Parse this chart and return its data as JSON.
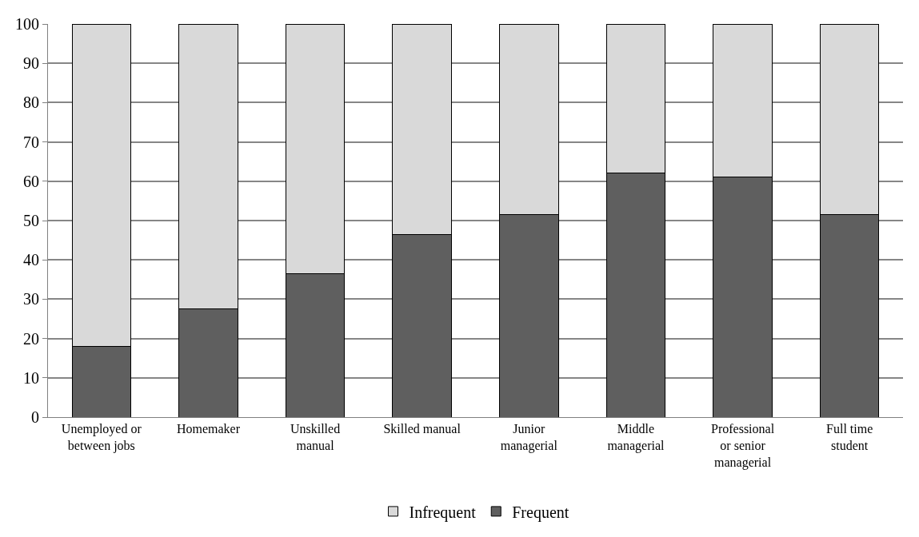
{
  "chart_data": {
    "type": "bar",
    "stacked": true,
    "categories": [
      "Unemployed or between jobs",
      "Homemaker",
      "Unskilled manual",
      "Skilled manual",
      "Junior managerial",
      "Middle managerial",
      "Professional or senior managerial",
      "Full time student"
    ],
    "series": [
      {
        "name": "Frequent",
        "color": "#5f5f5f",
        "values": [
          18,
          27.5,
          36.5,
          46.5,
          51.5,
          62,
          61,
          51.5
        ]
      },
      {
        "name": "Infrequent",
        "color": "#d9d9d9",
        "values": [
          82,
          72.5,
          63.5,
          53.5,
          48.5,
          38,
          39,
          48.5
        ]
      }
    ],
    "ylim": [
      0,
      100
    ],
    "yticks": [
      0,
      10,
      20,
      30,
      40,
      50,
      60,
      70,
      80,
      90,
      100
    ],
    "grid": "y",
    "legend": "bottom"
  }
}
